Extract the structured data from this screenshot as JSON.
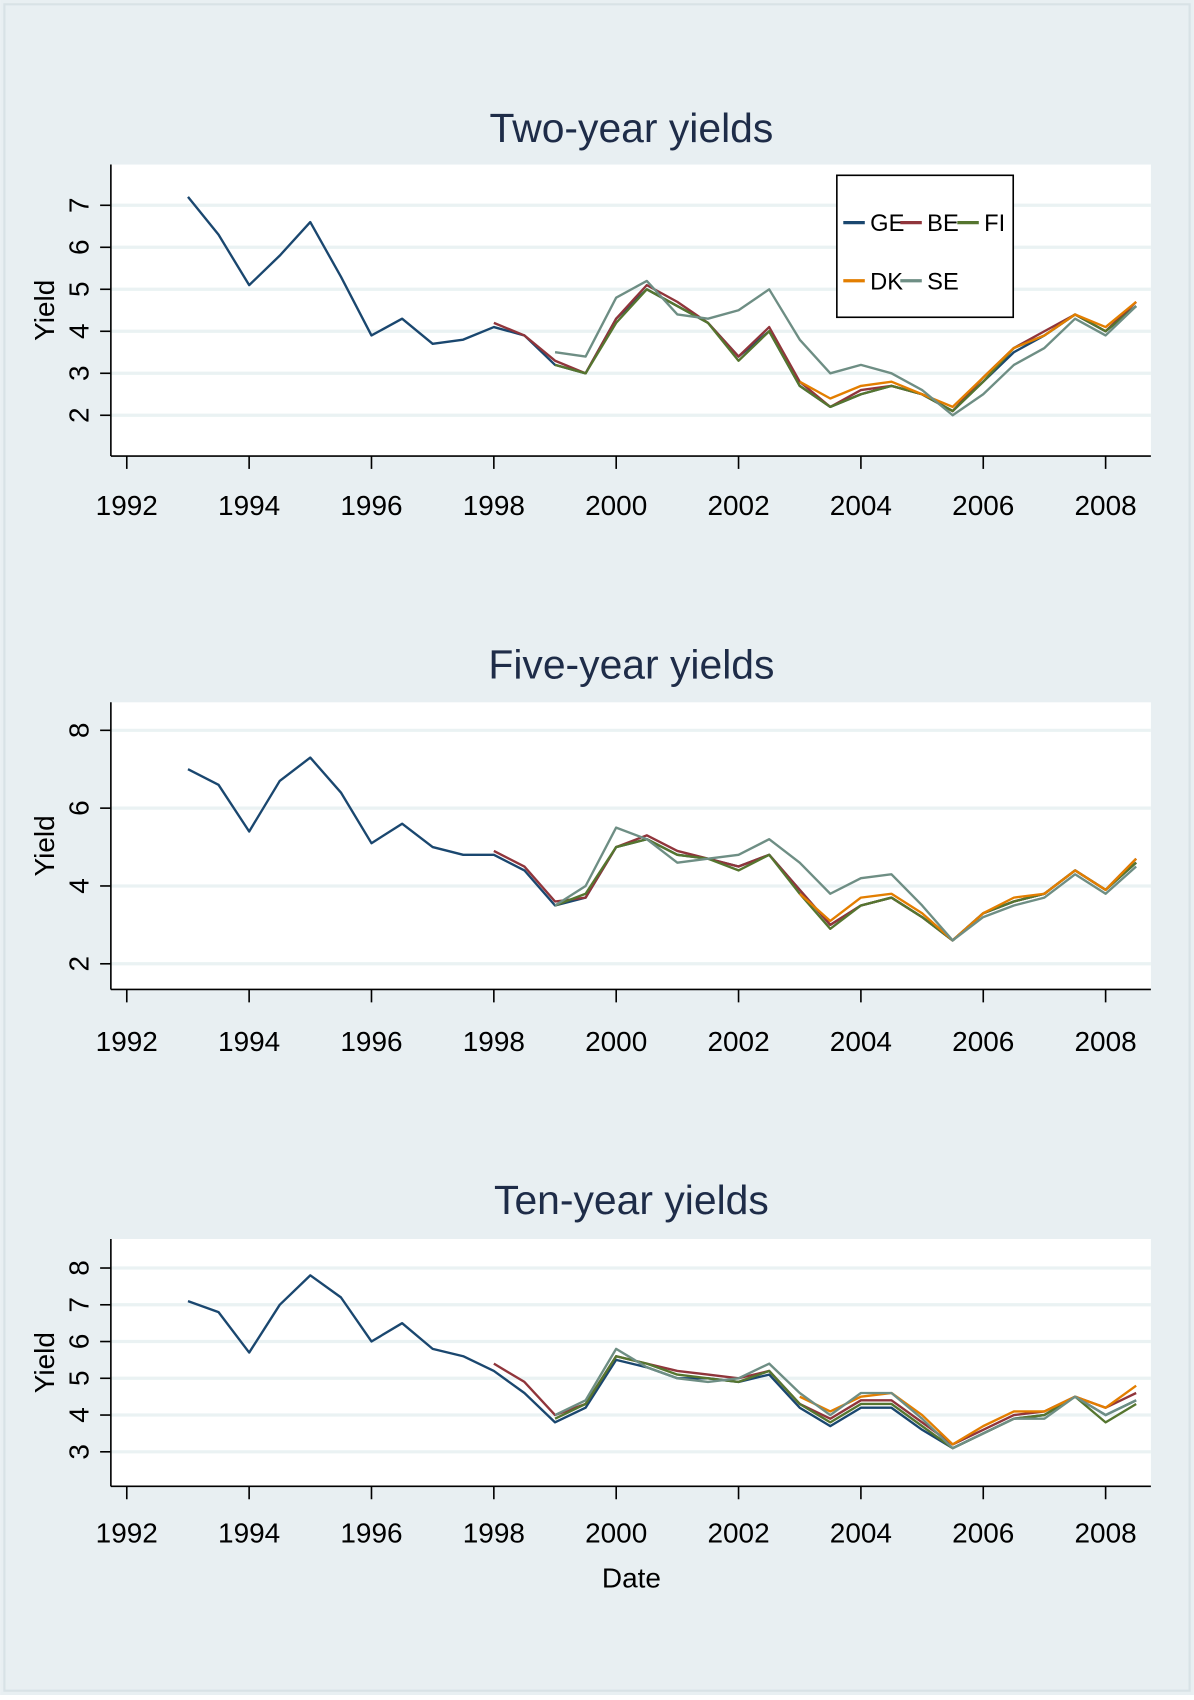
{
  "chart_data": [
    {
      "type": "line",
      "title": "Two-year yields",
      "y_label": "Yield",
      "x": [
        1993,
        1993.5,
        1994,
        1994.5,
        1995,
        1995.5,
        1996,
        1996.5,
        1997,
        1997.5,
        1998,
        1998.5,
        1999,
        1999.5,
        2000,
        2000.5,
        2001,
        2001.5,
        2002,
        2002.5,
        2003,
        2003.5,
        2004,
        2004.5,
        2005,
        2005.5,
        2006,
        2006.5,
        2007,
        2007.5,
        2008,
        2008.5
      ],
      "xlim": [
        1991.74,
        2008.74
      ],
      "xticks": [
        1992,
        1994,
        1996,
        1998,
        2000,
        2002,
        2004,
        2006,
        2008
      ],
      "ylim": [
        1.03,
        7.97
      ],
      "yticks": [
        2,
        3,
        4,
        5,
        6,
        7
      ],
      "grid": true,
      "legend": "upper right",
      "series": [
        {
          "name": "GE",
          "color": "#1a476f",
          "values": [
            7.2,
            6.3,
            5.1,
            5.8,
            6.6,
            5.3,
            3.9,
            4.3,
            3.7,
            3.8,
            4.1,
            3.9,
            3.2,
            3.0,
            4.3,
            5.0,
            4.6,
            4.2,
            3.4,
            4.0,
            2.7,
            2.2,
            2.5,
            2.7,
            2.5,
            2.1,
            2.8,
            3.5,
            3.9,
            4.4,
            4.0,
            4.6
          ]
        },
        {
          "name": "BE",
          "color": "#90353b",
          "values": [
            null,
            null,
            null,
            null,
            null,
            null,
            null,
            null,
            null,
            null,
            4.2,
            3.9,
            3.3,
            3.0,
            4.3,
            5.1,
            4.7,
            4.2,
            3.4,
            4.1,
            2.8,
            2.2,
            2.6,
            2.7,
            2.5,
            2.1,
            2.9,
            3.6,
            4.0,
            4.4,
            4.0,
            4.7
          ]
        },
        {
          "name": "FI",
          "color": "#55752f",
          "values": [
            null,
            null,
            null,
            null,
            null,
            null,
            null,
            null,
            null,
            null,
            null,
            null,
            3.2,
            3.0,
            4.2,
            5.0,
            4.6,
            4.2,
            3.3,
            4.0,
            2.7,
            2.2,
            2.5,
            2.7,
            2.5,
            2.1,
            2.8,
            3.6,
            3.9,
            4.4,
            4.0,
            4.6
          ]
        },
        {
          "name": "DK",
          "color": "#e37e00",
          "values": [
            null,
            null,
            null,
            null,
            null,
            null,
            null,
            null,
            null,
            null,
            null,
            null,
            null,
            null,
            null,
            null,
            null,
            null,
            null,
            null,
            2.8,
            2.4,
            2.7,
            2.8,
            2.5,
            2.2,
            2.9,
            3.6,
            3.9,
            4.4,
            4.1,
            4.7
          ]
        },
        {
          "name": "SE",
          "color": "#6e8e84",
          "values": [
            null,
            null,
            null,
            null,
            null,
            null,
            null,
            null,
            null,
            null,
            null,
            null,
            3.5,
            3.4,
            4.8,
            5.2,
            4.4,
            4.3,
            4.5,
            5.0,
            3.8,
            3.0,
            3.2,
            3.0,
            2.6,
            2.0,
            2.5,
            3.2,
            3.6,
            4.3,
            3.9,
            4.6
          ]
        }
      ]
    },
    {
      "type": "line",
      "title": "Five-year yields",
      "y_label": "Yield",
      "x": [
        1993,
        1993.5,
        1994,
        1994.5,
        1995,
        1995.5,
        1996,
        1996.5,
        1997,
        1997.5,
        1998,
        1998.5,
        1999,
        1999.5,
        2000,
        2000.5,
        2001,
        2001.5,
        2002,
        2002.5,
        2003,
        2003.5,
        2004,
        2004.5,
        2005,
        2005.5,
        2006,
        2006.5,
        2007,
        2007.5,
        2008,
        2008.5
      ],
      "xlim": [
        1991.74,
        2008.74
      ],
      "xticks": [
        1992,
        1994,
        1996,
        1998,
        2000,
        2002,
        2004,
        2006,
        2008
      ],
      "ylim": [
        1.34,
        8.72
      ],
      "yticks": [
        2,
        4,
        6,
        8
      ],
      "grid": true,
      "legend": false,
      "series": [
        {
          "name": "GE",
          "color": "#1a476f",
          "values": [
            7.0,
            6.6,
            5.4,
            6.7,
            7.3,
            6.4,
            5.1,
            5.6,
            5.0,
            4.8,
            4.8,
            4.4,
            3.5,
            3.7,
            5.0,
            5.2,
            4.8,
            4.7,
            4.5,
            4.8,
            3.9,
            3.0,
            3.5,
            3.7,
            3.2,
            2.6,
            3.3,
            3.6,
            3.8,
            4.4,
            3.9,
            4.6
          ]
        },
        {
          "name": "BE",
          "color": "#90353b",
          "values": [
            null,
            null,
            null,
            null,
            null,
            null,
            null,
            null,
            null,
            null,
            4.9,
            4.5,
            3.6,
            3.7,
            5.0,
            5.3,
            4.9,
            4.7,
            4.5,
            4.8,
            3.9,
            3.0,
            3.5,
            3.7,
            3.2,
            2.6,
            3.3,
            3.6,
            3.8,
            4.4,
            3.9,
            4.7
          ]
        },
        {
          "name": "FI",
          "color": "#55752f",
          "values": [
            null,
            null,
            null,
            null,
            null,
            null,
            null,
            null,
            null,
            null,
            null,
            null,
            3.5,
            3.8,
            5.0,
            5.2,
            4.8,
            4.7,
            4.4,
            4.8,
            3.8,
            2.9,
            3.5,
            3.7,
            3.2,
            2.6,
            3.3,
            3.6,
            3.8,
            4.4,
            3.9,
            4.6
          ]
        },
        {
          "name": "DK",
          "color": "#e37e00",
          "values": [
            null,
            null,
            null,
            null,
            null,
            null,
            null,
            null,
            null,
            null,
            null,
            null,
            null,
            null,
            null,
            null,
            null,
            null,
            null,
            null,
            3.8,
            3.1,
            3.7,
            3.8,
            3.3,
            2.6,
            3.3,
            3.7,
            3.8,
            4.4,
            3.9,
            4.7
          ]
        },
        {
          "name": "SE",
          "color": "#6e8e84",
          "values": [
            null,
            null,
            null,
            null,
            null,
            null,
            null,
            null,
            null,
            null,
            null,
            null,
            3.5,
            4.0,
            5.5,
            5.2,
            4.6,
            4.7,
            4.8,
            5.2,
            4.6,
            3.8,
            4.2,
            4.3,
            3.5,
            2.6,
            3.2,
            3.5,
            3.7,
            4.3,
            3.8,
            4.5
          ]
        }
      ]
    },
    {
      "type": "line",
      "title": "Ten-year yields",
      "y_label": "Yield",
      "x_label": "Date",
      "x": [
        1993,
        1993.5,
        1994,
        1994.5,
        1995,
        1995.5,
        1996,
        1996.5,
        1997,
        1997.5,
        1998,
        1998.5,
        1999,
        1999.5,
        2000,
        2000.5,
        2001,
        2001.5,
        2002,
        2002.5,
        2003,
        2003.5,
        2004,
        2004.5,
        2005,
        2005.5,
        2006,
        2006.5,
        2007,
        2007.5,
        2008,
        2008.5
      ],
      "xlim": [
        1991.74,
        2008.74
      ],
      "xticks": [
        1992,
        1994,
        1996,
        1998,
        2000,
        2002,
        2004,
        2006,
        2008
      ],
      "ylim": [
        2.06,
        8.79
      ],
      "yticks": [
        3,
        4,
        5,
        6,
        7,
        8
      ],
      "grid": true,
      "legend": false,
      "series": [
        {
          "name": "GE",
          "color": "#1a476f",
          "values": [
            7.1,
            6.8,
            5.7,
            7.0,
            7.8,
            7.2,
            6.0,
            6.5,
            5.8,
            5.6,
            5.2,
            4.6,
            3.8,
            4.2,
            5.5,
            5.3,
            5.0,
            5.0,
            4.9,
            5.1,
            4.2,
            3.7,
            4.2,
            4.2,
            3.6,
            3.1,
            3.5,
            3.9,
            4.0,
            4.5,
            4.0,
            4.4
          ]
        },
        {
          "name": "BE",
          "color": "#90353b",
          "values": [
            null,
            null,
            null,
            null,
            null,
            null,
            null,
            null,
            null,
            null,
            5.4,
            4.9,
            4.0,
            4.3,
            5.6,
            5.4,
            5.2,
            5.1,
            5.0,
            5.2,
            4.3,
            3.9,
            4.4,
            4.4,
            3.8,
            3.2,
            3.6,
            4.0,
            4.1,
            4.5,
            4.2,
            4.6
          ]
        },
        {
          "name": "FI",
          "color": "#55752f",
          "values": [
            null,
            null,
            null,
            null,
            null,
            null,
            null,
            null,
            null,
            null,
            null,
            null,
            3.9,
            4.3,
            5.6,
            5.4,
            5.1,
            5.0,
            4.9,
            5.2,
            4.3,
            3.8,
            4.3,
            4.3,
            3.7,
            3.1,
            3.5,
            3.9,
            4.0,
            4.5,
            3.8,
            4.3
          ]
        },
        {
          "name": "DK",
          "color": "#e37e00",
          "values": [
            null,
            null,
            null,
            null,
            null,
            null,
            null,
            null,
            null,
            null,
            null,
            null,
            null,
            null,
            null,
            null,
            null,
            null,
            null,
            null,
            4.5,
            4.1,
            4.5,
            4.6,
            4.0,
            3.2,
            3.7,
            4.1,
            4.1,
            4.5,
            4.2,
            4.8
          ]
        },
        {
          "name": "SE",
          "color": "#6e8e84",
          "values": [
            null,
            null,
            null,
            null,
            null,
            null,
            null,
            null,
            null,
            null,
            null,
            null,
            4.0,
            4.4,
            5.8,
            5.3,
            5.0,
            4.9,
            5.0,
            5.4,
            4.6,
            4.0,
            4.6,
            4.6,
            3.9,
            3.1,
            3.5,
            3.9,
            3.9,
            4.5,
            4.0,
            4.4
          ]
        }
      ]
    }
  ]
}
